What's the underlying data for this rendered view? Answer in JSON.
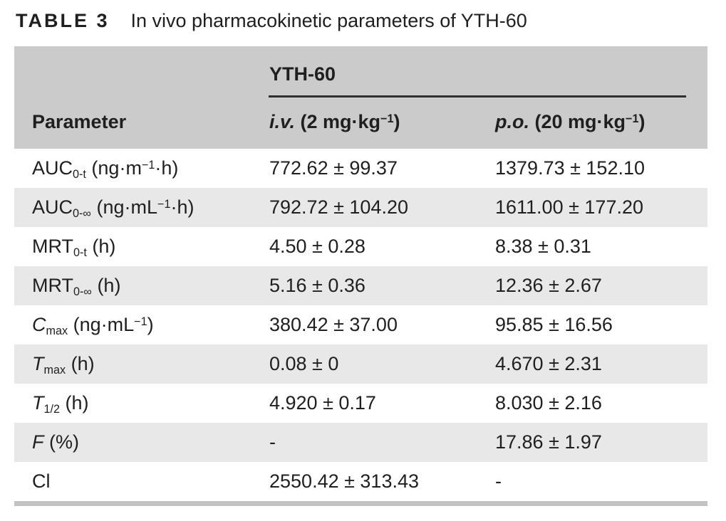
{
  "title": {
    "label": "TABLE 3",
    "text": "In vivo pharmacokinetic parameters of YTH-60"
  },
  "colors": {
    "page_bg": "#ffffff",
    "header_bg": "#cbcbcb",
    "stripe_bg": "#e8e8e8",
    "row_bg": "#ffffff",
    "text": "#1f1f1f",
    "group_rule": "#2e2e2e",
    "bottom_bar": "#c3c3c3"
  },
  "table": {
    "group_header": "YTH-60",
    "header": {
      "parameter": [
        {
          "t": "Parameter"
        }
      ],
      "iv": [
        {
          "t": "i.v.",
          "i": true
        },
        {
          "t": " (2 mg·kg"
        },
        {
          "t": "−1",
          "sup": true
        },
        {
          "t": ")"
        }
      ],
      "po": [
        {
          "t": "p.o.",
          "i": true
        },
        {
          "t": " (20 mg·kg"
        },
        {
          "t": "−1",
          "sup": true
        },
        {
          "t": ")"
        }
      ]
    },
    "rows": [
      {
        "param": [
          {
            "t": "AUC"
          },
          {
            "t": "0-t",
            "sub": true
          },
          {
            "t": " (ng·m"
          },
          {
            "t": "−1",
            "sup": true
          },
          {
            "t": "·h)"
          }
        ],
        "iv": "772.62 ± 99.37",
        "po": "1379.73 ± 152.10"
      },
      {
        "param": [
          {
            "t": "AUC"
          },
          {
            "t": "0-∞",
            "sub": true
          },
          {
            "t": " (ng·mL"
          },
          {
            "t": "−1",
            "sup": true
          },
          {
            "t": "·h)"
          }
        ],
        "iv": "792.72 ± 104.20",
        "po": "1611.00 ± 177.20"
      },
      {
        "param": [
          {
            "t": "MRT"
          },
          {
            "t": "0-t",
            "sub": true
          },
          {
            "t": " (h)"
          }
        ],
        "iv": "4.50 ± 0.28",
        "po": "8.38 ± 0.31"
      },
      {
        "param": [
          {
            "t": "MRT"
          },
          {
            "t": "0-∞",
            "sub": true
          },
          {
            "t": " (h)"
          }
        ],
        "iv": "5.16 ± 0.36",
        "po": "12.36 ± 2.67"
      },
      {
        "param": [
          {
            "t": "C",
            "i": true
          },
          {
            "t": "max",
            "sub": true
          },
          {
            "t": " (ng·mL"
          },
          {
            "t": "−1",
            "sup": true
          },
          {
            "t": ")"
          }
        ],
        "iv": "380.42 ± 37.00",
        "po": "95.85 ± 16.56"
      },
      {
        "param": [
          {
            "t": "T",
            "i": true
          },
          {
            "t": "max",
            "sub": true
          },
          {
            "t": " (h)"
          }
        ],
        "iv": "0.08 ± 0",
        "po": "4.670 ± 2.31"
      },
      {
        "param": [
          {
            "t": "T",
            "i": true
          },
          {
            "t": "1/2",
            "sub": true
          },
          {
            "t": " (h)"
          }
        ],
        "iv": "4.920 ± 0.17",
        "po": "8.030 ± 2.16"
      },
      {
        "param": [
          {
            "t": "F",
            "i": true
          },
          {
            "t": " (%)"
          }
        ],
        "iv": "-",
        "po": "17.86 ± 1.97"
      },
      {
        "param": [
          {
            "t": "Cl"
          }
        ],
        "iv": "2550.42 ± 313.43",
        "po": "-"
      }
    ]
  }
}
